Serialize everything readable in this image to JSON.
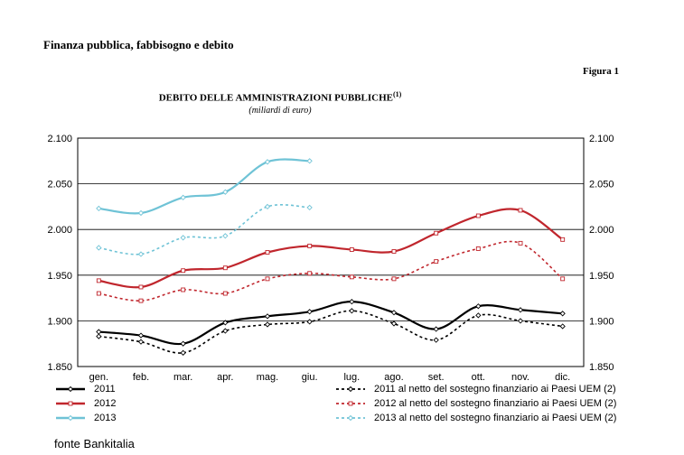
{
  "header": {
    "section_title": "Finanza pubblica, fabbisogno e debito",
    "figure_label": "Figura 1"
  },
  "chart_data": {
    "type": "line",
    "title": "DEBITO DELLE AMMINISTRAZIONI PUBBLICHE",
    "title_note": "(1)",
    "subtitle": "(miliardi di euro)",
    "categories": [
      "gen.",
      "feb.",
      "mar.",
      "apr.",
      "mag.",
      "giu.",
      "lug.",
      "ago.",
      "set.",
      "ott.",
      "nov.",
      "dic."
    ],
    "ylim": [
      1850,
      2100
    ],
    "yticks": [
      1850,
      1900,
      1950,
      2000,
      2050,
      2100
    ],
    "ytick_labels": [
      "1.850",
      "1.900",
      "1.950",
      "2.000",
      "2.050",
      "2.100"
    ],
    "grid": "horizontal",
    "y_axis": "left and right",
    "series": [
      {
        "name": "2011",
        "style": "solid",
        "color": "#000000",
        "values": [
          1888,
          1884,
          1875,
          1898,
          1905,
          1910,
          1921,
          1909,
          1891,
          1916,
          1912,
          1908
        ]
      },
      {
        "name": "2012",
        "style": "solid",
        "color": "#c0262d",
        "values": [
          1944,
          1937,
          1955,
          1958,
          1975,
          1982,
          1978,
          1976,
          1996,
          2015,
          2021,
          1989
        ]
      },
      {
        "name": "2013",
        "style": "solid",
        "color": "#6fc3d6",
        "values": [
          2023,
          2018,
          2035,
          2041,
          2074,
          2075,
          null,
          null,
          null,
          null,
          null,
          null
        ]
      },
      {
        "name": "2011 al netto del sostegno finanziario ai Paesi UEM (2)",
        "style": "dotted",
        "color": "#000000",
        "values": [
          1883,
          1877,
          1865,
          1889,
          1896,
          1899,
          1911,
          1897,
          1879,
          1906,
          1900,
          1894
        ]
      },
      {
        "name": "2012 al netto del sostegno finanziario ai Paesi UEM (2)",
        "style": "dotted",
        "color": "#c0262d",
        "values": [
          1930,
          1922,
          1934,
          1930,
          1946,
          1952,
          1948,
          1946,
          1965,
          1979,
          1985,
          1946
        ]
      },
      {
        "name": "2013 al netto del sostegno finanziario ai Paesi UEM (2)",
        "style": "dotted",
        "color": "#6fc3d6",
        "values": [
          1980,
          1973,
          1991,
          1993,
          2025,
          2024,
          null,
          null,
          null,
          null,
          null,
          null
        ]
      }
    ]
  },
  "footer": {
    "source": "fonte Bankitalia"
  }
}
